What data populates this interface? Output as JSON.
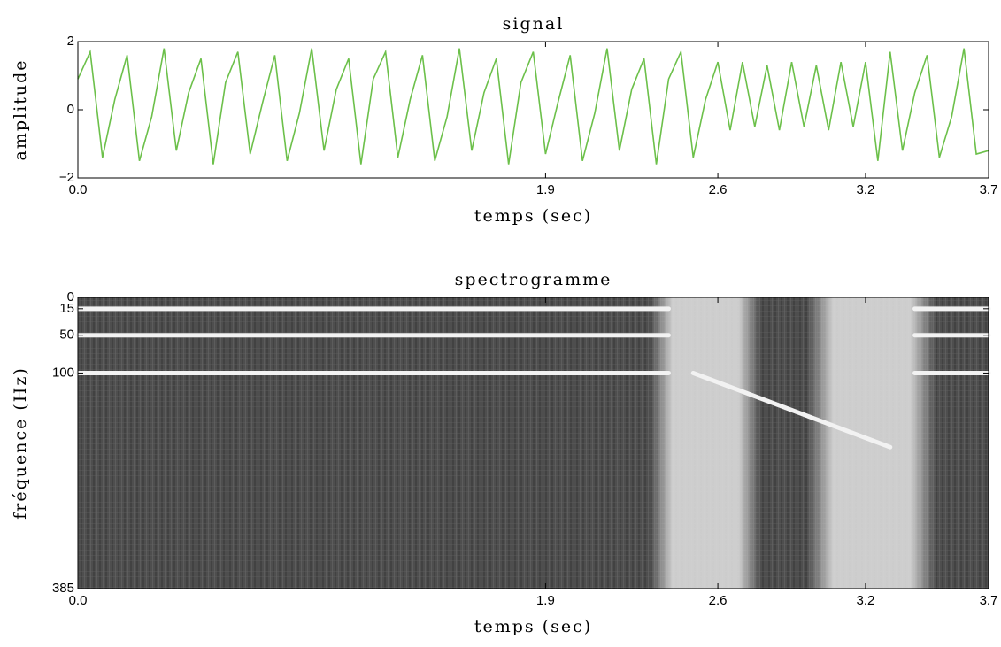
{
  "chart_data": [
    {
      "type": "line",
      "title": "signal",
      "x_label": "temps (sec)",
      "y_label": "amplitude",
      "xlim": [
        0,
        3.7
      ],
      "ylim": [
        -2,
        2
      ],
      "xticks": [
        {
          "value": 0,
          "label": "0.0"
        },
        1.9,
        2.6,
        3.2,
        3.7
      ],
      "yticks": [
        {
          "value": -2,
          "label": "−2"
        },
        0,
        2
      ],
      "series": [
        {
          "color": "#6cc04a",
          "x": [
            0,
            0.05,
            0.1,
            0.15,
            0.2,
            0.25,
            0.3,
            0.35,
            0.4,
            0.45,
            0.5,
            0.55,
            0.6,
            0.65,
            0.7,
            0.75,
            0.8,
            0.85,
            0.9,
            0.95,
            1,
            1.05,
            1.1,
            1.15,
            1.2,
            1.25,
            1.3,
            1.35,
            1.4,
            1.45,
            1.5,
            1.55,
            1.6,
            1.65,
            1.7,
            1.75,
            1.8,
            1.85,
            1.9,
            1.95,
            2,
            2.05,
            2.1,
            2.15,
            2.2,
            2.25,
            2.3,
            2.35,
            2.4,
            2.45,
            2.5,
            2.55,
            2.6,
            2.65,
            2.7,
            2.75,
            2.8,
            2.85,
            2.9,
            2.95,
            3,
            3.05,
            3.1,
            3.15,
            3.2,
            3.25,
            3.3,
            3.35,
            3.4,
            3.45,
            3.5,
            3.55,
            3.6,
            3.65,
            3.7
          ],
          "values": [
            0.9,
            1.7,
            -1.4,
            0.3,
            1.6,
            -1.5,
            -0.2,
            1.8,
            -1.2,
            0.5,
            1.5,
            -1.6,
            0.8,
            1.7,
            -1.3,
            0.2,
            1.6,
            -1.5,
            -0.1,
            1.8,
            -1.2,
            0.6,
            1.5,
            -1.6,
            0.9,
            1.7,
            -1.4,
            0.3,
            1.6,
            -1.5,
            -0.2,
            1.8,
            -1.2,
            0.5,
            1.5,
            -1.6,
            0.8,
            1.7,
            -1.3,
            0.2,
            1.6,
            -1.5,
            -0.1,
            1.8,
            -1.2,
            0.6,
            1.5,
            -1.6,
            0.9,
            1.7,
            -1.4,
            0.3,
            1.4,
            -0.6,
            1.4,
            -0.5,
            1.3,
            -0.6,
            1.4,
            -0.5,
            1.3,
            -0.6,
            1.4,
            -0.5,
            1.4,
            -1.5,
            1.7,
            -1.2,
            0.5,
            1.6,
            -1.4,
            -0.2,
            1.8,
            -1.3,
            -1.2
          ]
        }
      ]
    },
    {
      "type": "spectrogram",
      "title": "spectrogramme",
      "x_label": "temps (sec)",
      "y_label": "fréquence (Hz)",
      "xlim": [
        0,
        3.7
      ],
      "ylim": [
        0,
        385
      ],
      "y_inverted": true,
      "xticks": [
        {
          "value": 0,
          "label": "0.0"
        },
        1.9,
        2.6,
        3.2,
        3.7
      ],
      "yticks": [
        0,
        15,
        50,
        100,
        385
      ],
      "background": "#4e4e4e",
      "tone_color": "#f2f2f2",
      "bright_regions": [
        [
          2.4,
          2.7
        ],
        [
          3.05,
          3.4
        ]
      ],
      "tones": [
        {
          "x": [
            0,
            2.4
          ],
          "y": [
            15,
            15
          ]
        },
        {
          "x": [
            3.4,
            3.7
          ],
          "y": [
            15,
            15
          ]
        },
        {
          "x": [
            0,
            2.4
          ],
          "y": [
            50,
            50
          ]
        },
        {
          "x": [
            3.4,
            3.7
          ],
          "y": [
            50,
            50
          ]
        },
        {
          "x": [
            0,
            2.4
          ],
          "y": [
            100,
            100
          ]
        },
        {
          "x": [
            3.4,
            3.7
          ],
          "y": [
            100,
            100
          ]
        },
        {
          "x": [
            2.5,
            3.3
          ],
          "y": [
            100,
            198
          ]
        }
      ]
    }
  ]
}
